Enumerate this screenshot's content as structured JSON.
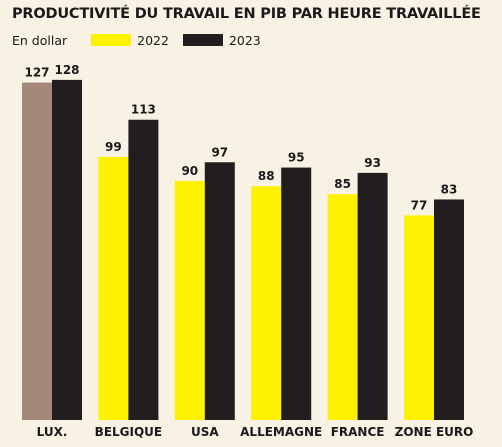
{
  "chart_data": {
    "type": "bar",
    "title": "PRODUCTIVITÉ DU TRAVAIL EN PIB PAR HEURE TRAVAILLÉE",
    "unit_label": "En dollar",
    "categories": [
      "LUX.",
      "BELGIQUE",
      "USA",
      "ALLEMAGNE",
      "FRANCE",
      "ZONE EURO"
    ],
    "series": [
      {
        "name": "2022",
        "values": [
          127,
          99,
          90,
          88,
          85,
          77
        ],
        "color": "#fff200"
      },
      {
        "name": "2023",
        "values": [
          128,
          113,
          97,
          95,
          93,
          83
        ],
        "color": "#221e1f"
      }
    ],
    "highlight": {
      "category_index": 0,
      "series_index": 0,
      "color": "#a4897a"
    },
    "ylim": [
      0,
      140
    ],
    "grid": false,
    "legend_position": "top-left"
  }
}
